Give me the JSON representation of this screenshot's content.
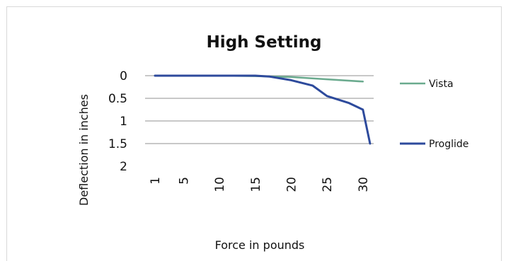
{
  "chart_data": {
    "type": "line",
    "title": "High Setting",
    "xlabel": "Force in pounds",
    "ylabel": "Deflection in inches",
    "x_ticks": [
      "1",
      "5",
      "10",
      "15",
      "20",
      "25",
      "30"
    ],
    "y_ticks": [
      "0",
      "0.5",
      "1",
      "1.5",
      "2"
    ],
    "ylim": [
      0,
      2
    ],
    "y_inverted": true,
    "grid": "horizontal",
    "legend_position": "right",
    "series": [
      {
        "name": "Vista",
        "color": "#6aaa8e",
        "x": [
          1,
          5,
          10,
          15,
          20,
          25,
          30
        ],
        "y": [
          0,
          0,
          0,
          0.01,
          0.03,
          0.08,
          0.13
        ]
      },
      {
        "name": "Proglide",
        "color": "#2d4a9c",
        "x": [
          1,
          5,
          10,
          15,
          17,
          20,
          23,
          25,
          28,
          30,
          31
        ],
        "y": [
          0,
          0,
          0,
          0,
          0.02,
          0.1,
          0.22,
          0.45,
          0.6,
          0.75,
          1.5
        ]
      }
    ]
  }
}
